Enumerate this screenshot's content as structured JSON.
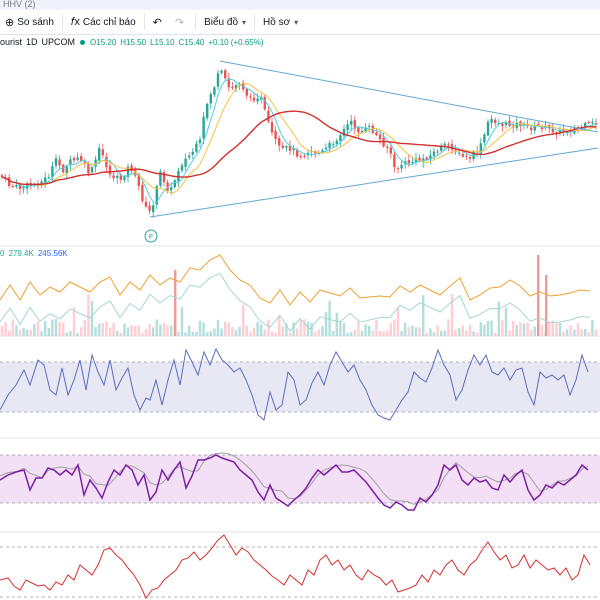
{
  "window": {
    "title": "HHV (2)"
  },
  "toolbar": {
    "compare": "So sánh",
    "indicators": "Các chỉ báo",
    "chart_type": "Biểu đồ",
    "profile": "Hồ sơ"
  },
  "legend": {
    "symbol": "ourist",
    "interval": "1D",
    "exchange": "UPCOM",
    "open": "O15.20",
    "high": "H15.50",
    "low": "L15.10",
    "close": "C15.40",
    "change": "+0.10 (+0.65%)"
  },
  "volume_legend": {
    "prefix": "0",
    "value1": "279.4K",
    "value2": "245.56K"
  },
  "colors": {
    "up": "#26a69a",
    "down": "#ef5350",
    "trendline": "#5fa8d3",
    "ma_long": "#d32f2f",
    "ma_yellow": "#f5c242",
    "ma_cyan": "#4dd0e1",
    "vol_ma": "#f0a030",
    "rsi_line": "#5c6bc0",
    "rsi_band": "#e8e8f5",
    "stoch_k": "#7b1fa2",
    "stoch_d": "#9e9e9e",
    "stoch_band": "#f3e0f7",
    "bottom_line": "#d32f2f"
  },
  "markers": [
    {
      "label": "F",
      "color": "#26a69a"
    }
  ],
  "chart_data": {
    "type": "candlestick",
    "title": "",
    "price_anchors": [
      [
        0,
        175
      ],
      [
        10,
        186
      ],
      [
        20,
        188
      ],
      [
        30,
        185
      ],
      [
        40,
        183
      ],
      [
        50,
        175
      ],
      [
        55,
        160
      ],
      [
        63,
        170
      ],
      [
        70,
        162
      ],
      [
        80,
        158
      ],
      [
        90,
        175
      ],
      [
        100,
        148
      ],
      [
        110,
        175
      ],
      [
        120,
        180
      ],
      [
        130,
        165
      ],
      [
        140,
        190
      ],
      [
        145,
        208
      ],
      [
        150,
        212
      ],
      [
        155,
        198
      ],
      [
        160,
        172
      ],
      [
        170,
        193
      ],
      [
        180,
        165
      ],
      [
        190,
        155
      ],
      [
        200,
        142
      ],
      [
        205,
        110
      ],
      [
        210,
        95
      ],
      [
        215,
        85
      ],
      [
        220,
        70
      ],
      [
        230,
        90
      ],
      [
        240,
        82
      ],
      [
        250,
        100
      ],
      [
        260,
        95
      ],
      [
        270,
        130
      ],
      [
        280,
        150
      ],
      [
        290,
        148
      ],
      [
        300,
        156
      ],
      [
        310,
        150
      ],
      [
        320,
        154
      ],
      [
        330,
        145
      ],
      [
        340,
        135
      ],
      [
        350,
        122
      ],
      [
        360,
        132
      ],
      [
        370,
        128
      ],
      [
        380,
        140
      ],
      [
        390,
        150
      ],
      [
        395,
        172
      ],
      [
        400,
        165
      ],
      [
        410,
        162
      ],
      [
        420,
        160
      ],
      [
        430,
        156
      ],
      [
        440,
        148
      ],
      [
        450,
        145
      ],
      [
        460,
        156
      ],
      [
        470,
        158
      ],
      [
        480,
        148
      ],
      [
        490,
        118
      ],
      [
        500,
        124
      ],
      [
        510,
        125
      ],
      [
        520,
        124
      ],
      [
        530,
        128
      ],
      [
        540,
        126
      ],
      [
        550,
        130
      ],
      [
        560,
        132
      ],
      [
        570,
        130
      ],
      [
        580,
        128
      ],
      [
        590,
        124
      ]
    ],
    "volume_ma_anchors": [
      [
        0,
        300
      ],
      [
        10,
        285
      ],
      [
        20,
        300
      ],
      [
        30,
        282
      ],
      [
        40,
        295
      ],
      [
        50,
        287
      ],
      [
        60,
        292
      ],
      [
        70,
        282
      ],
      [
        80,
        287
      ],
      [
        90,
        292
      ],
      [
        100,
        282
      ],
      [
        110,
        277
      ],
      [
        120,
        295
      ],
      [
        130,
        282
      ],
      [
        140,
        290
      ],
      [
        150,
        275
      ],
      [
        160,
        285
      ],
      [
        170,
        278
      ],
      [
        180,
        282
      ],
      [
        190,
        268
      ],
      [
        200,
        270
      ],
      [
        210,
        260
      ],
      [
        220,
        255
      ],
      [
        230,
        270
      ],
      [
        240,
        280
      ],
      [
        250,
        285
      ],
      [
        260,
        298
      ],
      [
        270,
        303
      ],
      [
        280,
        290
      ],
      [
        290,
        305
      ],
      [
        300,
        292
      ],
      [
        310,
        302
      ],
      [
        320,
        290
      ],
      [
        330,
        293
      ],
      [
        340,
        296
      ],
      [
        350,
        288
      ],
      [
        360,
        298
      ],
      [
        370,
        297
      ],
      [
        380,
        296
      ],
      [
        390,
        297
      ],
      [
        400,
        286
      ],
      [
        410,
        292
      ],
      [
        420,
        285
      ],
      [
        430,
        290
      ],
      [
        440,
        295
      ],
      [
        450,
        286
      ],
      [
        460,
        278
      ],
      [
        470,
        300
      ],
      [
        480,
        295
      ],
      [
        490,
        288
      ],
      [
        500,
        287
      ],
      [
        510,
        280
      ],
      [
        520,
        286
      ],
      [
        530,
        296
      ],
      [
        540,
        292
      ],
      [
        550,
        296
      ],
      [
        560,
        295
      ],
      [
        570,
        293
      ],
      [
        580,
        290
      ],
      [
        590,
        291
      ]
    ],
    "rsi_anchors": [
      [
        0,
        410
      ],
      [
        8,
        395
      ],
      [
        16,
        385
      ],
      [
        24,
        370
      ],
      [
        30,
        385
      ],
      [
        38,
        360
      ],
      [
        44,
        365
      ],
      [
        50,
        390
      ],
      [
        56,
        395
      ],
      [
        62,
        368
      ],
      [
        68,
        395
      ],
      [
        74,
        380
      ],
      [
        80,
        360
      ],
      [
        86,
        390
      ],
      [
        92,
        355
      ],
      [
        98,
        372
      ],
      [
        104,
        385
      ],
      [
        110,
        360
      ],
      [
        116,
        390
      ],
      [
        122,
        378
      ],
      [
        128,
        368
      ],
      [
        134,
        395
      ],
      [
        140,
        410
      ],
      [
        146,
        398
      ],
      [
        150,
        400
      ],
      [
        156,
        380
      ],
      [
        162,
        405
      ],
      [
        168,
        380
      ],
      [
        174,
        360
      ],
      [
        180,
        385
      ],
      [
        186,
        350
      ],
      [
        192,
        362
      ],
      [
        198,
        375
      ],
      [
        204,
        352
      ],
      [
        210,
        365
      ],
      [
        216,
        349
      ],
      [
        222,
        360
      ],
      [
        228,
        365
      ],
      [
        234,
        372
      ],
      [
        240,
        368
      ],
      [
        246,
        380
      ],
      [
        252,
        395
      ],
      [
        258,
        415
      ],
      [
        264,
        420
      ],
      [
        270,
        392
      ],
      [
        276,
        410
      ],
      [
        282,
        405
      ],
      [
        288,
        372
      ],
      [
        294,
        380
      ],
      [
        300,
        405
      ],
      [
        306,
        400
      ],
      [
        312,
        383
      ],
      [
        318,
        372
      ],
      [
        324,
        385
      ],
      [
        330,
        365
      ],
      [
        336,
        352
      ],
      [
        342,
        362
      ],
      [
        348,
        372
      ],
      [
        354,
        365
      ],
      [
        360,
        380
      ],
      [
        366,
        390
      ],
      [
        372,
        405
      ],
      [
        378,
        415
      ],
      [
        384,
        418
      ],
      [
        390,
        420
      ],
      [
        396,
        410
      ],
      [
        402,
        400
      ],
      [
        408,
        392
      ],
      [
        414,
        372
      ],
      [
        420,
        378
      ],
      [
        426,
        382
      ],
      [
        432,
        368
      ],
      [
        438,
        350
      ],
      [
        444,
        365
      ],
      [
        450,
        375
      ],
      [
        456,
        400
      ],
      [
        462,
        390
      ],
      [
        468,
        370
      ],
      [
        474,
        355
      ],
      [
        480,
        365
      ],
      [
        486,
        355
      ],
      [
        492,
        372
      ],
      [
        498,
        375
      ],
      [
        504,
        368
      ],
      [
        510,
        380
      ],
      [
        516,
        370
      ],
      [
        522,
        368
      ],
      [
        528,
        392
      ],
      [
        534,
        405
      ],
      [
        540,
        372
      ],
      [
        546,
        378
      ],
      [
        552,
        375
      ],
      [
        558,
        380
      ],
      [
        564,
        375
      ],
      [
        570,
        395
      ],
      [
        576,
        380
      ],
      [
        582,
        355
      ],
      [
        588,
        372
      ]
    ],
    "stoch_k_anchors": [
      [
        0,
        480
      ],
      [
        8,
        475
      ],
      [
        16,
        472
      ],
      [
        24,
        470
      ],
      [
        30,
        490
      ],
      [
        36,
        478
      ],
      [
        42,
        478
      ],
      [
        48,
        468
      ],
      [
        54,
        470
      ],
      [
        60,
        475
      ],
      [
        66,
        470
      ],
      [
        72,
        475
      ],
      [
        78,
        465
      ],
      [
        84,
        495
      ],
      [
        90,
        480
      ],
      [
        96,
        488
      ],
      [
        102,
        498
      ],
      [
        108,
        482
      ],
      [
        114,
        470
      ],
      [
        120,
        475
      ],
      [
        126,
        465
      ],
      [
        132,
        470
      ],
      [
        138,
        485
      ],
      [
        144,
        475
      ],
      [
        150,
        500
      ],
      [
        156,
        492
      ],
      [
        162,
        470
      ],
      [
        168,
        480
      ],
      [
        174,
        470
      ],
      [
        180,
        462
      ],
      [
        186,
        488
      ],
      [
        192,
        476
      ],
      [
        198,
        460
      ],
      [
        204,
        460
      ],
      [
        210,
        458
      ],
      [
        216,
        455
      ],
      [
        222,
        458
      ],
      [
        228,
        460
      ],
      [
        234,
        462
      ],
      [
        240,
        470
      ],
      [
        246,
        475
      ],
      [
        252,
        480
      ],
      [
        258,
        492
      ],
      [
        264,
        500
      ],
      [
        270,
        485
      ],
      [
        276,
        498
      ],
      [
        282,
        502
      ],
      [
        288,
        506
      ],
      [
        294,
        500
      ],
      [
        300,
        495
      ],
      [
        306,
        488
      ],
      [
        312,
        478
      ],
      [
        318,
        470
      ],
      [
        324,
        475
      ],
      [
        330,
        470
      ],
      [
        336,
        465
      ],
      [
        342,
        472
      ],
      [
        348,
        472
      ],
      [
        354,
        470
      ],
      [
        360,
        476
      ],
      [
        366,
        482
      ],
      [
        372,
        490
      ],
      [
        378,
        498
      ],
      [
        384,
        505
      ],
      [
        390,
        508
      ],
      [
        396,
        502
      ],
      [
        402,
        505
      ],
      [
        408,
        510
      ],
      [
        414,
        510
      ],
      [
        420,
        498
      ],
      [
        426,
        502
      ],
      [
        432,
        495
      ],
      [
        438,
        485
      ],
      [
        444,
        465
      ],
      [
        450,
        470
      ],
      [
        456,
        465
      ],
      [
        462,
        480
      ],
      [
        468,
        485
      ],
      [
        474,
        478
      ],
      [
        480,
        482
      ],
      [
        486,
        480
      ],
      [
        492,
        488
      ],
      [
        498,
        490
      ],
      [
        504,
        475
      ],
      [
        510,
        482
      ],
      [
        516,
        475
      ],
      [
        522,
        470
      ],
      [
        528,
        490
      ],
      [
        534,
        500
      ],
      [
        540,
        495
      ],
      [
        546,
        485
      ],
      [
        552,
        488
      ],
      [
        558,
        482
      ],
      [
        564,
        485
      ],
      [
        570,
        480
      ],
      [
        576,
        475
      ],
      [
        582,
        465
      ],
      [
        588,
        470
      ]
    ],
    "bottom_anchors": [
      [
        0,
        580
      ],
      [
        8,
        578
      ],
      [
        14,
        586
      ],
      [
        20,
        590
      ],
      [
        26,
        580
      ],
      [
        32,
        583
      ],
      [
        38,
        586
      ],
      [
        44,
        585
      ],
      [
        50,
        590
      ],
      [
        56,
        582
      ],
      [
        62,
        585
      ],
      [
        68,
        575
      ],
      [
        74,
        580
      ],
      [
        80,
        565
      ],
      [
        86,
        570
      ],
      [
        92,
        575
      ],
      [
        98,
        565
      ],
      [
        104,
        550
      ],
      [
        110,
        548
      ],
      [
        116,
        555
      ],
      [
        122,
        560
      ],
      [
        128,
        568
      ],
      [
        134,
        575
      ],
      [
        140,
        585
      ],
      [
        146,
        598
      ],
      [
        152,
        590
      ],
      [
        158,
        588
      ],
      [
        164,
        580
      ],
      [
        170,
        575
      ],
      [
        176,
        570
      ],
      [
        182,
        560
      ],
      [
        188,
        558
      ],
      [
        194,
        552
      ],
      [
        200,
        560
      ],
      [
        206,
        555
      ],
      [
        212,
        548
      ],
      [
        218,
        540
      ],
      [
        224,
        535
      ],
      [
        230,
        545
      ],
      [
        236,
        555
      ],
      [
        242,
        548
      ],
      [
        248,
        552
      ],
      [
        254,
        560
      ],
      [
        260,
        565
      ],
      [
        266,
        570
      ],
      [
        272,
        576
      ],
      [
        278,
        580
      ],
      [
        284,
        585
      ],
      [
        290,
        575
      ],
      [
        296,
        580
      ],
      [
        302,
        585
      ],
      [
        308,
        570
      ],
      [
        314,
        575
      ],
      [
        320,
        560
      ],
      [
        326,
        555
      ],
      [
        332,
        565
      ],
      [
        338,
        560
      ],
      [
        344,
        570
      ],
      [
        350,
        565
      ],
      [
        356,
        575
      ],
      [
        362,
        580
      ],
      [
        368,
        570
      ],
      [
        374,
        575
      ],
      [
        380,
        578
      ],
      [
        386,
        585
      ],
      [
        392,
        580
      ],
      [
        398,
        592
      ],
      [
        404,
        590
      ],
      [
        410,
        588
      ],
      [
        416,
        585
      ],
      [
        422,
        575
      ],
      [
        428,
        582
      ],
      [
        434,
        570
      ],
      [
        440,
        575
      ],
      [
        446,
        565
      ],
      [
        452,
        560
      ],
      [
        458,
        570
      ],
      [
        464,
        575
      ],
      [
        470,
        565
      ],
      [
        476,
        560
      ],
      [
        482,
        550
      ],
      [
        488,
        542
      ],
      [
        494,
        552
      ],
      [
        500,
        560
      ],
      [
        506,
        555
      ],
      [
        512,
        568
      ],
      [
        518,
        565
      ],
      [
        524,
        555
      ],
      [
        530,
        568
      ],
      [
        536,
        560
      ],
      [
        542,
        565
      ],
      [
        548,
        570
      ],
      [
        554,
        568
      ],
      [
        560,
        575
      ],
      [
        566,
        568
      ],
      [
        572,
        580
      ],
      [
        578,
        575
      ],
      [
        584,
        555
      ],
      [
        590,
        565
      ]
    ]
  }
}
